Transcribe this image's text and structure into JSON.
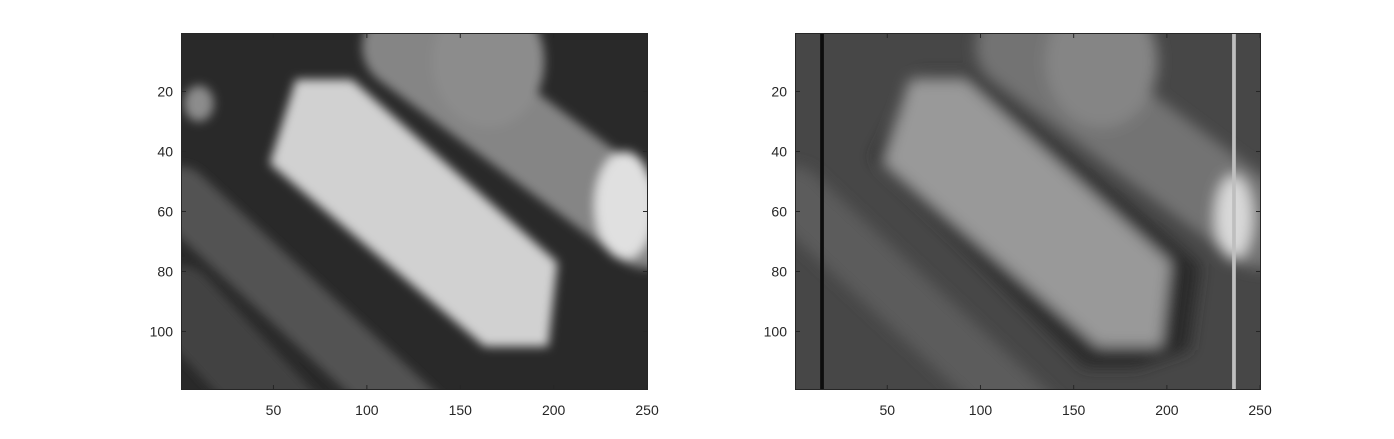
{
  "chart_data": [
    {
      "type": "heatmap",
      "colormap": "gray",
      "xlim": [
        0.5,
        250.5
      ],
      "ylim": [
        0.5,
        119.5
      ],
      "y_direction": "reverse",
      "xticks": [
        50,
        100,
        150,
        200,
        250
      ],
      "yticks": [
        20,
        40,
        60,
        80,
        100
      ],
      "xtick_labels": [
        "50",
        "100",
        "150",
        "200",
        "250"
      ],
      "ytick_labels": [
        "20",
        "40",
        "60",
        "80",
        "100"
      ],
      "background_level": 0.16,
      "features": [
        {
          "kind": "bar",
          "from": [
            120,
            5
          ],
          "to": [
            250,
            65
          ],
          "halfwidth": 14,
          "level": 0.52
        },
        {
          "kind": "bar",
          "from": [
            0,
            55
          ],
          "to": [
            130,
            130
          ],
          "halfwidth": 10,
          "level": 0.32
        },
        {
          "kind": "bar",
          "from": [
            0,
            90
          ],
          "to": [
            60,
            130
          ],
          "halfwidth": 12,
          "level": 0.26
        },
        {
          "kind": "blob",
          "center": [
            165,
            10
          ],
          "radius": [
            30,
            22
          ],
          "level": 0.55
        },
        {
          "kind": "blob",
          "center": [
            238,
            58
          ],
          "radius": [
            16,
            18
          ],
          "level": 0.88
        },
        {
          "kind": "blob",
          "center": [
            10,
            24
          ],
          "radius": [
            8,
            6
          ],
          "level": 0.55
        },
        {
          "kind": "polygon",
          "points": [
            [
              62,
              16
            ],
            [
              92,
              16
            ],
            [
              202,
              77
            ],
            [
              197,
              105
            ],
            [
              163,
              105
            ],
            [
              48,
              44
            ]
          ],
          "level": 0.82
        }
      ]
    },
    {
      "type": "heatmap",
      "colormap": "gray",
      "xlim": [
        0.5,
        250.5
      ],
      "ylim": [
        0.5,
        119.5
      ],
      "y_direction": "reverse",
      "xticks": [
        50,
        100,
        150,
        200,
        250
      ],
      "yticks": [
        20,
        40,
        60,
        80,
        100
      ],
      "xtick_labels": [
        "50",
        "100",
        "150",
        "200",
        "250"
      ],
      "ytick_labels": [
        "20",
        "40",
        "60",
        "80",
        "100"
      ],
      "background_level": 0.28,
      "features": [
        {
          "kind": "bar",
          "from": [
            120,
            5
          ],
          "to": [
            250,
            65
          ],
          "halfwidth": 14,
          "level": 0.45
        },
        {
          "kind": "bar",
          "from": [
            0,
            55
          ],
          "to": [
            130,
            130
          ],
          "halfwidth": 10,
          "level": 0.36
        },
        {
          "kind": "blob",
          "center": [
            165,
            10
          ],
          "radius": [
            30,
            22
          ],
          "level": 0.52
        },
        {
          "kind": "blob",
          "center": [
            236,
            62
          ],
          "radius": [
            10,
            14
          ],
          "level": 0.85
        },
        {
          "kind": "polygon",
          "points": [
            [
              42,
              42
            ],
            [
              68,
              14
            ],
            [
              96,
              14
            ],
            [
              218,
              78
            ],
            [
              212,
              106
            ],
            [
              184,
              112
            ],
            [
              156,
              112
            ]
          ],
          "level": 0.16
        },
        {
          "kind": "polygon",
          "points": [
            [
              62,
              16
            ],
            [
              92,
              16
            ],
            [
              202,
              77
            ],
            [
              197,
              105
            ],
            [
              163,
              105
            ],
            [
              48,
              44
            ]
          ],
          "level": 0.6
        },
        {
          "kind": "vline",
          "x": 15,
          "width": 2,
          "level": 0.05
        },
        {
          "kind": "vline",
          "x": 236,
          "width": 2,
          "level": 0.75
        }
      ]
    }
  ]
}
